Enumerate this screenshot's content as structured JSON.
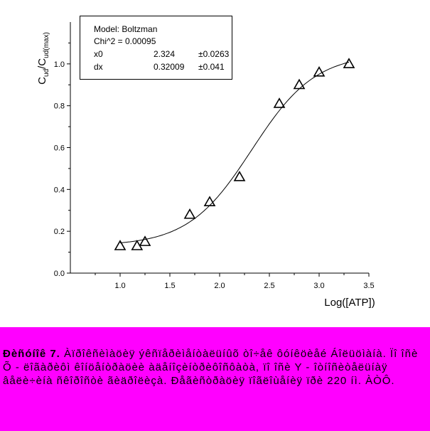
{
  "chart_data": {
    "type": "scatter",
    "xlabel": "Log([ATP])",
    "ylabel_main": "C",
    "ylabel_sub1": "ud",
    "ylabel_mid": "/C",
    "ylabel_sub2": "ud(max)",
    "xlim": [
      0.5,
      3.5
    ],
    "ylim": [
      0.0,
      1.2
    ],
    "x_ticks": [
      "1.0",
      "1.5",
      "2.0",
      "2.5",
      "3.0",
      "3.5"
    ],
    "y_ticks": [
      "0.0",
      "0.2",
      "0.4",
      "0.6",
      "0.8",
      "1.0"
    ],
    "points": [
      {
        "x": 1.0,
        "y": 0.13
      },
      {
        "x": 1.17,
        "y": 0.13
      },
      {
        "x": 1.25,
        "y": 0.15
      },
      {
        "x": 1.7,
        "y": 0.28
      },
      {
        "x": 1.9,
        "y": 0.34
      },
      {
        "x": 2.2,
        "y": 0.46
      },
      {
        "x": 2.6,
        "y": 0.81
      },
      {
        "x": 2.8,
        "y": 0.9
      },
      {
        "x": 3.0,
        "y": 0.96
      },
      {
        "x": 3.3,
        "y": 1.0
      }
    ],
    "fit": {
      "model": "Boltzman",
      "x0": 2.324,
      "dx": 0.32009,
      "a1": 0.13,
      "a2": 1.05
    },
    "grid": false,
    "legend": {
      "model_text": "Model: Boltzman",
      "chi_text": "Chi^2 = 0.00095",
      "rows": [
        {
          "name": "x0",
          "value": "2.324",
          "err": "±0.0263"
        },
        {
          "name": "dx",
          "value": "0.32009",
          "err": "±0.041"
        }
      ]
    }
  },
  "caption": {
    "label": "Ðèñóíîê 7.",
    "text": "Àïðîêñèìàöèÿ ýêñïåðèìåíòàëüíûõ òî÷åê ôóíêöèåé Áîëüöìàíà. Ïî îñè Õ - ëîãàðèôì êîíöåíòðàöèè àäåíîçèíòðèôîñôàòà, ïî îñè Y - îòíîñèòåëüíàÿ âåëè÷èíà ñêîðîñòè ãèäðîëèçà. Ðåãèñòðàöèÿ ïîãëîùåíèÿ ïðè 220 íì. ÀÒÔ."
  }
}
